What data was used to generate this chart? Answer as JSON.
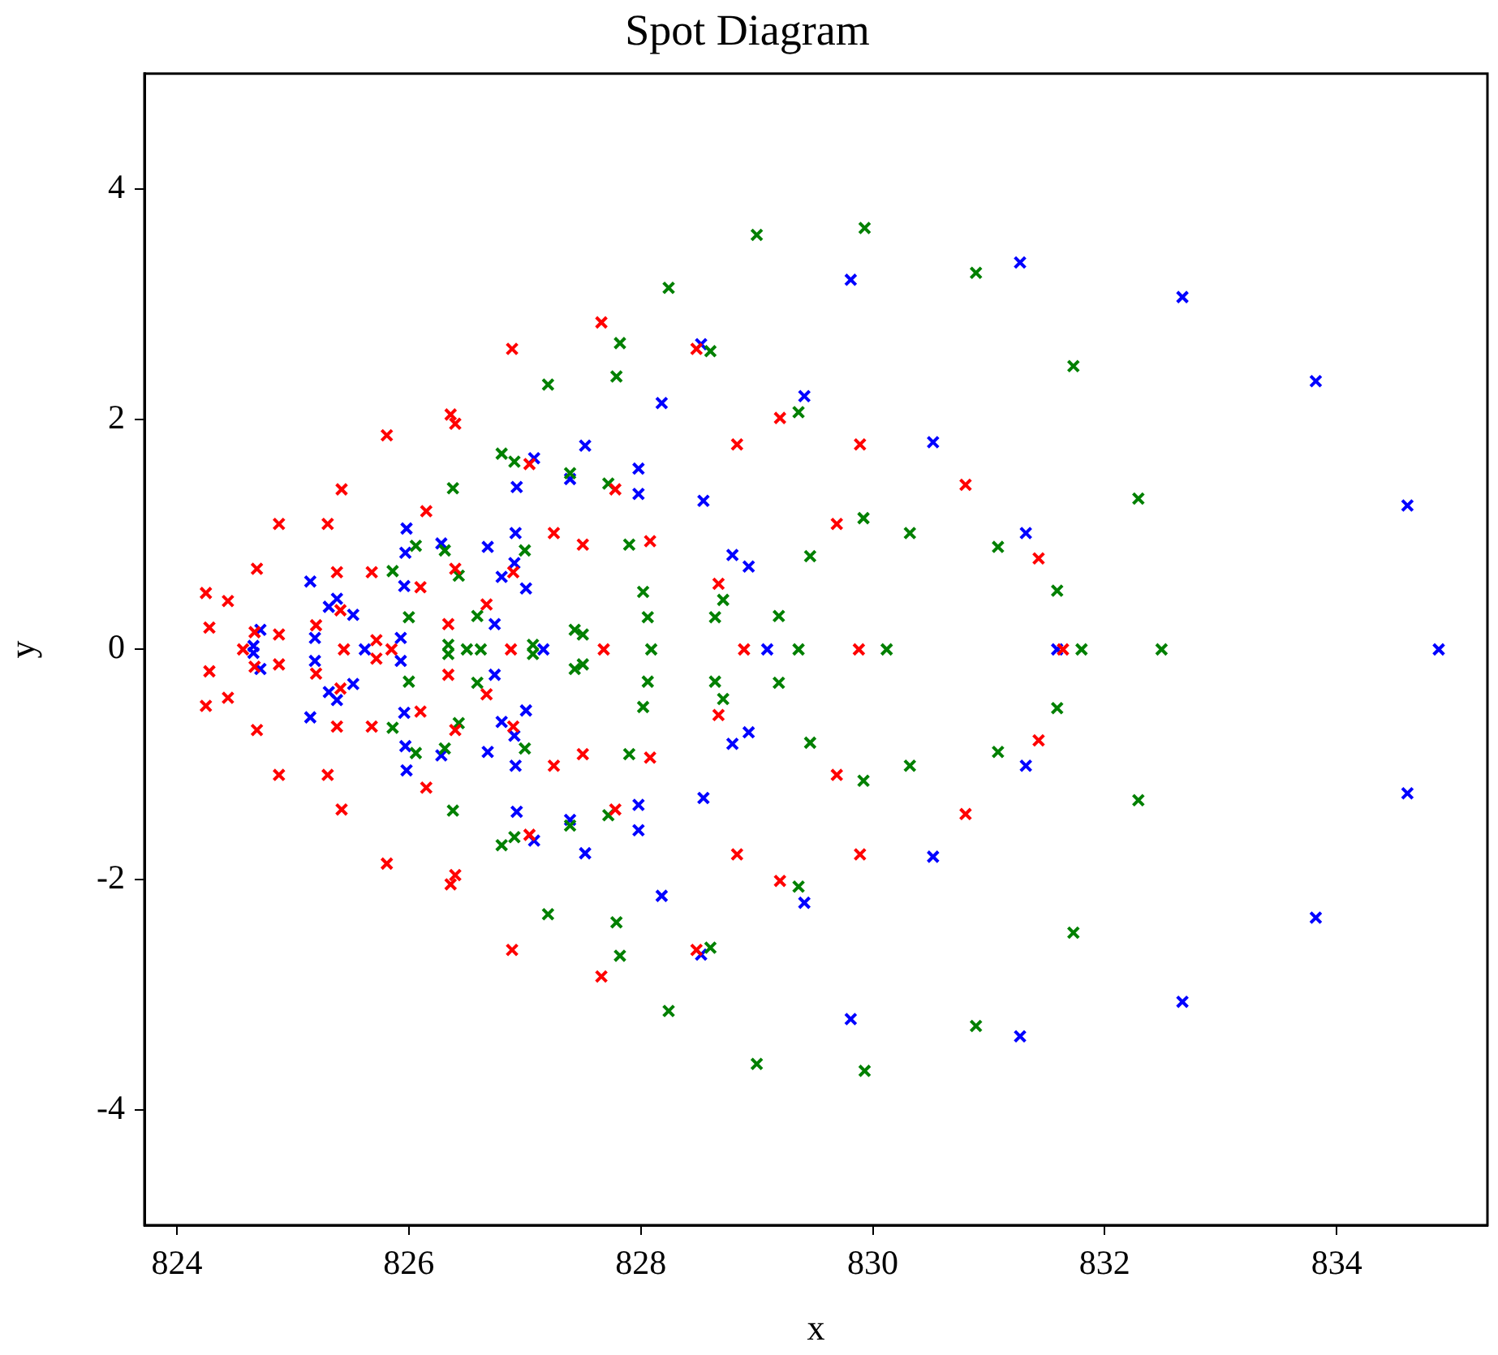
{
  "chart_data": {
    "type": "scatter",
    "title": "Spot Diagram",
    "xlabel": "x",
    "ylabel": "y",
    "xlim": [
      823.72,
      835.3
    ],
    "ylim": [
      -5,
      5
    ],
    "xticks": [
      824,
      826,
      828,
      830,
      832,
      834
    ],
    "yticks": [
      -4,
      -2,
      0,
      2,
      4
    ],
    "legend": false,
    "marker": "cross",
    "series": [
      {
        "color": "#ff0000",
        "x": [
          826.89,
          827.66,
          828.48,
          826.36,
          826.4,
          825.81,
          827.04,
          829.2,
          825.42,
          826.15,
          827.78,
          828.83,
          829.89,
          824.88,
          825.3,
          827.25,
          827.5,
          828.08,
          829.69,
          830.8,
          824.69,
          825.38,
          825.68,
          826.1,
          826.4,
          826.9,
          828.67,
          831.43,
          824.25,
          824.44,
          825.41,
          826.67,
          826.34,
          824.28,
          824.67,
          824.88,
          825.2,
          825.72,
          824.57,
          825.44,
          825.85,
          826.88,
          827.68,
          828.89,
          829.88,
          831.64,
          826.89,
          827.66,
          828.48,
          826.36,
          826.4,
          825.81,
          827.04,
          829.2,
          825.42,
          826.15,
          827.78,
          828.83,
          829.89,
          824.88,
          825.3,
          827.25,
          827.5,
          828.08,
          829.69,
          830.8,
          824.69,
          825.38,
          825.68,
          826.1,
          826.4,
          826.9,
          828.67,
          831.43,
          824.25,
          824.44,
          825.41,
          826.67,
          826.34,
          824.28,
          824.67,
          824.88,
          825.2,
          825.72
        ],
        "values": [
          2.61,
          2.84,
          2.61,
          2.04,
          1.96,
          1.86,
          1.61,
          2.01,
          1.39,
          1.2,
          1.39,
          1.78,
          1.78,
          1.09,
          1.09,
          1.01,
          0.91,
          0.94,
          1.09,
          1.43,
          0.7,
          0.67,
          0.67,
          0.54,
          0.7,
          0.67,
          0.57,
          0.79,
          0.49,
          0.42,
          0.34,
          0.39,
          0.22,
          0.19,
          0.15,
          0.13,
          0.21,
          0.08,
          0,
          0,
          0,
          0,
          0,
          0,
          0,
          0,
          -2.61,
          -2.84,
          -2.61,
          -2.04,
          -1.96,
          -1.86,
          -1.61,
          -2.01,
          -1.39,
          -1.2,
          -1.39,
          -1.78,
          -1.78,
          -1.09,
          -1.09,
          -1.01,
          -0.91,
          -0.94,
          -1.09,
          -1.43,
          -0.7,
          -0.67,
          -0.67,
          -0.54,
          -0.7,
          -0.67,
          -0.57,
          -0.79,
          -0.49,
          -0.42,
          -0.34,
          -0.39,
          -0.22,
          -0.19,
          -0.15,
          -0.13,
          -0.21,
          -0.08
        ]
      },
      {
        "color": "#008000",
        "x": [
          828.24,
          829.0,
          829.93,
          830.89,
          827.82,
          828.6,
          827.79,
          827.2,
          829.36,
          831.73,
          826.8,
          826.91,
          827.39,
          826.38,
          827.72,
          826.06,
          826.31,
          827.0,
          827.9,
          825.86,
          826.43,
          829.92,
          830.32,
          831.08,
          832.29,
          829.46,
          828.71,
          828.02,
          831.59,
          826.0,
          826.59,
          827.43,
          827.5,
          828.06,
          828.64,
          829.19,
          827.07,
          826.34,
          826.5,
          826.62,
          828.09,
          829.36,
          830.12,
          831.8,
          832.49,
          828.24,
          829.0,
          829.93,
          830.89,
          827.82,
          828.6,
          827.79,
          827.2,
          829.36,
          831.73,
          826.8,
          826.91,
          827.39,
          826.38,
          827.72,
          826.06,
          826.31,
          827.0,
          827.9,
          825.86,
          826.43,
          829.92,
          830.32,
          831.08,
          832.29,
          829.46,
          828.71,
          828.02,
          831.59,
          826.0,
          826.59,
          827.43,
          827.5,
          828.06,
          828.64,
          829.19,
          827.07,
          826.34
        ],
        "values": [
          3.14,
          3.6,
          3.66,
          3.27,
          2.66,
          2.59,
          2.37,
          2.3,
          2.06,
          2.46,
          1.7,
          1.63,
          1.53,
          1.4,
          1.44,
          0.9,
          0.86,
          0.86,
          0.91,
          0.68,
          0.64,
          1.14,
          1.01,
          0.89,
          1.31,
          0.81,
          0.43,
          0.5,
          0.51,
          0.28,
          0.29,
          0.17,
          0.13,
          0.28,
          0.28,
          0.29,
          0.04,
          0.04,
          0,
          0,
          0,
          0,
          0,
          0,
          0,
          -3.14,
          -3.6,
          -3.66,
          -3.27,
          -2.66,
          -2.59,
          -2.37,
          -2.3,
          -2.06,
          -2.46,
          -1.7,
          -1.63,
          -1.53,
          -1.4,
          -1.44,
          -0.9,
          -0.86,
          -0.86,
          -0.91,
          -0.68,
          -0.64,
          -1.14,
          -1.01,
          -0.89,
          -1.31,
          -0.81,
          -0.43,
          -0.5,
          -0.51,
          -0.28,
          -0.29,
          -0.17,
          -0.13,
          -0.28,
          -0.28,
          -0.29,
          -0.04,
          -0.04
        ]
      },
      {
        "color": "#0000ff",
        "x": [
          829.81,
          831.27,
          832.67,
          833.82,
          834.61,
          828.52,
          828.18,
          829.41,
          830.52,
          827.52,
          827.08,
          827.39,
          826.93,
          827.98,
          827.98,
          828.54,
          831.32,
          828.79,
          828.93,
          825.98,
          826.28,
          825.97,
          826.68,
          826.92,
          826.91,
          826.8,
          827.01,
          825.96,
          825.15,
          825.38,
          825.31,
          825.52,
          826.74,
          824.72,
          825.19,
          825.93,
          824.66,
          825.62,
          827.16,
          829.09,
          831.59,
          834.88,
          829.81,
          831.27,
          832.67,
          833.82,
          834.61,
          828.52,
          828.18,
          829.41,
          830.52,
          827.52,
          827.08,
          827.39,
          826.93,
          827.98,
          827.98,
          828.54,
          831.32,
          828.79,
          828.93,
          825.98,
          826.28,
          825.97,
          826.68,
          826.92,
          826.91,
          826.8,
          827.01,
          825.96,
          825.15,
          825.38,
          825.31,
          825.52,
          826.74,
          824.72,
          825.19,
          825.93,
          824.66
        ],
        "values": [
          3.21,
          3.36,
          3.06,
          2.33,
          1.25,
          2.65,
          2.14,
          2.2,
          1.8,
          1.77,
          1.66,
          1.48,
          1.41,
          1.57,
          1.35,
          1.29,
          1.01,
          0.82,
          0.72,
          1.05,
          0.92,
          0.84,
          0.89,
          1.01,
          0.75,
          0.63,
          0.53,
          0.55,
          0.59,
          0.44,
          0.37,
          0.3,
          0.22,
          0.17,
          0.1,
          0.1,
          0.03,
          0,
          0,
          0,
          0,
          0,
          -3.21,
          -3.36,
          -3.06,
          -2.33,
          -1.25,
          -2.65,
          -2.14,
          -2.2,
          -1.8,
          -1.77,
          -1.66,
          -1.48,
          -1.41,
          -1.57,
          -1.35,
          -1.29,
          -1.01,
          -0.82,
          -0.72,
          -1.05,
          -0.92,
          -0.84,
          -0.89,
          -1.01,
          -0.75,
          -0.63,
          -0.53,
          -0.55,
          -0.59,
          -0.44,
          -0.37,
          -0.3,
          -0.22,
          -0.17,
          -0.1,
          -0.1,
          -0.03
        ]
      }
    ]
  }
}
